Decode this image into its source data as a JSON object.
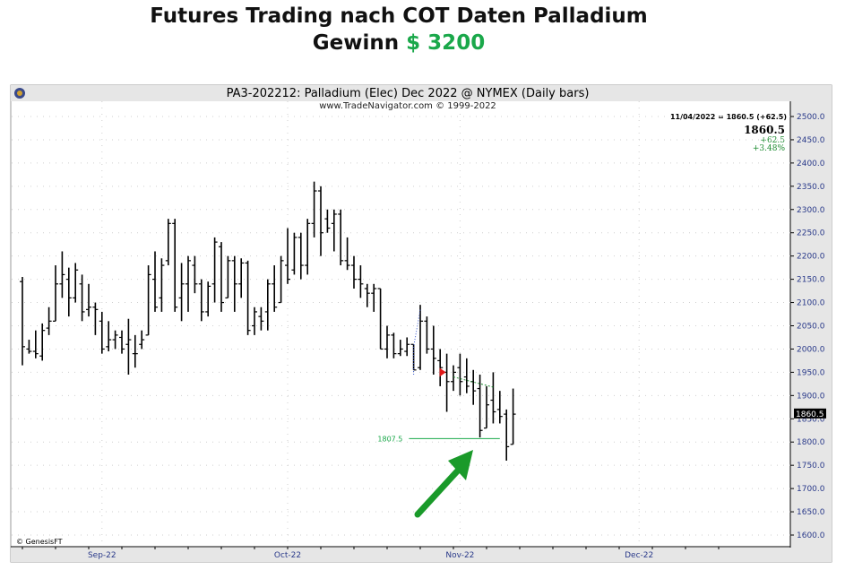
{
  "headline": {
    "line1": "Futures Trading nach COT Daten Palladium",
    "line2_prefix": "Gewinn",
    "line2_amount": "$ 3200"
  },
  "chart_data": {
    "type": "ohlc",
    "title": "PA3-202212:  Palladium (Elec) Dec 2022 @ NYMEX  (Daily bars)",
    "subtitle": "www.TradeNavigator.com © 1999-2022",
    "watermark": "© GenesisFT",
    "info_line": "11/04/2022 = 1860.5 (+62.5)",
    "last_price": "1860.5",
    "change": "+62.5",
    "change_pct": "+3.48%",
    "price_label": "1860.5",
    "level_label": "1807.5",
    "level_value": 1807.5,
    "ylim": [
      1600,
      2500
    ],
    "yticks": [
      1600,
      1650,
      1700,
      1750,
      1800,
      1850,
      1900,
      1950,
      2000,
      2050,
      2100,
      2150,
      2200,
      2250,
      2300,
      2350,
      2400,
      2450,
      2500
    ],
    "ytick_labels": [
      "1600.0",
      "1650.0",
      "1700.0",
      "1750.0",
      "1800.0",
      "1850.0",
      "1900.0",
      "1950.0",
      "2000.0",
      "2050.0",
      "2100.0",
      "2150.0",
      "2200.0",
      "2250.0",
      "2300.0",
      "2350.0",
      "2400.0",
      "2450.0",
      "2500.0"
    ],
    "xticks": [
      {
        "label": "Sep-22",
        "index": 12
      },
      {
        "label": "Oct-22",
        "index": 40
      },
      {
        "label": "Nov-22",
        "index": 66
      },
      {
        "label": "Dec-22",
        "index": 93
      }
    ],
    "x_count": 110,
    "bars": [
      {
        "i": 0,
        "o": 2145,
        "h": 2155,
        "l": 1965,
        "c": 2005
      },
      {
        "i": 1,
        "o": 2000,
        "h": 2020,
        "l": 1990,
        "c": 1995
      },
      {
        "i": 2,
        "o": 1995,
        "h": 2040,
        "l": 1980,
        "c": 1990
      },
      {
        "i": 3,
        "o": 1985,
        "h": 2055,
        "l": 1975,
        "c": 2040
      },
      {
        "i": 4,
        "o": 2045,
        "h": 2090,
        "l": 2030,
        "c": 2060
      },
      {
        "i": 5,
        "o": 2060,
        "h": 2180,
        "l": 2060,
        "c": 2140
      },
      {
        "i": 6,
        "o": 2140,
        "h": 2210,
        "l": 2110,
        "c": 2160
      },
      {
        "i": 7,
        "o": 2150,
        "h": 2175,
        "l": 2070,
        "c": 2110
      },
      {
        "i": 8,
        "o": 2110,
        "h": 2185,
        "l": 2100,
        "c": 2170
      },
      {
        "i": 9,
        "o": 2140,
        "h": 2160,
        "l": 2060,
        "c": 2080
      },
      {
        "i": 10,
        "o": 2085,
        "h": 2140,
        "l": 2070,
        "c": 2090
      },
      {
        "i": 11,
        "o": 2090,
        "h": 2100,
        "l": 2030,
        "c": 2085
      },
      {
        "i": 12,
        "o": 2060,
        "h": 2080,
        "l": 1990,
        "c": 2000
      },
      {
        "i": 13,
        "o": 2005,
        "h": 2060,
        "l": 1995,
        "c": 2020
      },
      {
        "i": 14,
        "o": 2020,
        "h": 2040,
        "l": 2000,
        "c": 2030
      },
      {
        "i": 15,
        "o": 2025,
        "h": 2040,
        "l": 1990,
        "c": 2000
      },
      {
        "i": 16,
        "o": 2010,
        "h": 2065,
        "l": 1945,
        "c": 2020
      },
      {
        "i": 17,
        "o": 1990,
        "h": 2030,
        "l": 1960,
        "c": 1990
      },
      {
        "i": 18,
        "o": 2010,
        "h": 2040,
        "l": 2000,
        "c": 2020
      },
      {
        "i": 19,
        "o": 2030,
        "h": 2180,
        "l": 2030,
        "c": 2160
      },
      {
        "i": 20,
        "o": 2150,
        "h": 2210,
        "l": 2080,
        "c": 2090
      },
      {
        "i": 21,
        "o": 2110,
        "h": 2195,
        "l": 2080,
        "c": 2180
      },
      {
        "i": 22,
        "o": 2190,
        "h": 2280,
        "l": 2180,
        "c": 2270
      },
      {
        "i": 23,
        "o": 2270,
        "h": 2280,
        "l": 2080,
        "c": 2090
      },
      {
        "i": 24,
        "o": 2110,
        "h": 2185,
        "l": 2060,
        "c": 2140
      },
      {
        "i": 25,
        "o": 2140,
        "h": 2200,
        "l": 2080,
        "c": 2190
      },
      {
        "i": 26,
        "o": 2180,
        "h": 2200,
        "l": 2120,
        "c": 2140
      },
      {
        "i": 27,
        "o": 2140,
        "h": 2150,
        "l": 2060,
        "c": 2080
      },
      {
        "i": 28,
        "o": 2080,
        "h": 2145,
        "l": 2070,
        "c": 2135
      },
      {
        "i": 29,
        "o": 2140,
        "h": 2240,
        "l": 2100,
        "c": 2230
      },
      {
        "i": 30,
        "o": 2220,
        "h": 2230,
        "l": 2080,
        "c": 2100
      },
      {
        "i": 31,
        "o": 2110,
        "h": 2200,
        "l": 2110,
        "c": 2190
      },
      {
        "i": 32,
        "o": 2190,
        "h": 2200,
        "l": 2080,
        "c": 2140
      },
      {
        "i": 33,
        "o": 2140,
        "h": 2195,
        "l": 2110,
        "c": 2185
      },
      {
        "i": 34,
        "o": 2185,
        "h": 2190,
        "l": 2030,
        "c": 2040
      },
      {
        "i": 35,
        "o": 2050,
        "h": 2090,
        "l": 2030,
        "c": 2080
      },
      {
        "i": 36,
        "o": 2070,
        "h": 2090,
        "l": 2040,
        "c": 2060
      },
      {
        "i": 37,
        "o": 2080,
        "h": 2150,
        "l": 2040,
        "c": 2140
      },
      {
        "i": 38,
        "o": 2140,
        "h": 2180,
        "l": 2080,
        "c": 2090
      },
      {
        "i": 39,
        "o": 2100,
        "h": 2200,
        "l": 2100,
        "c": 2190
      },
      {
        "i": 40,
        "o": 2180,
        "h": 2260,
        "l": 2140,
        "c": 2150
      },
      {
        "i": 41,
        "o": 2170,
        "h": 2250,
        "l": 2160,
        "c": 2240
      },
      {
        "i": 42,
        "o": 2240,
        "h": 2250,
        "l": 2150,
        "c": 2180
      },
      {
        "i": 43,
        "o": 2180,
        "h": 2280,
        "l": 2160,
        "c": 2270
      },
      {
        "i": 44,
        "o": 2270,
        "h": 2360,
        "l": 2240,
        "c": 2340
      },
      {
        "i": 45,
        "o": 2340,
        "h": 2350,
        "l": 2200,
        "c": 2250
      },
      {
        "i": 46,
        "o": 2280,
        "h": 2300,
        "l": 2250,
        "c": 2260
      },
      {
        "i": 47,
        "o": 2270,
        "h": 2300,
        "l": 2210,
        "c": 2290
      },
      {
        "i": 48,
        "o": 2290,
        "h": 2300,
        "l": 2180,
        "c": 2190
      },
      {
        "i": 49,
        "o": 2190,
        "h": 2240,
        "l": 2170,
        "c": 2180
      },
      {
        "i": 50,
        "o": 2180,
        "h": 2200,
        "l": 2130,
        "c": 2150
      },
      {
        "i": 51,
        "o": 2150,
        "h": 2180,
        "l": 2110,
        "c": 2140
      },
      {
        "i": 52,
        "o": 2130,
        "h": 2140,
        "l": 2090,
        "c": 2120
      },
      {
        "i": 53,
        "o": 2120,
        "h": 2140,
        "l": 2080,
        "c": 2130
      },
      {
        "i": 54,
        "o": 2130,
        "h": 2130,
        "l": 2000,
        "c": 2000
      },
      {
        "i": 55,
        "o": 2000,
        "h": 2050,
        "l": 1980,
        "c": 2030
      },
      {
        "i": 56,
        "o": 2030,
        "h": 2035,
        "l": 1980,
        "c": 1990
      },
      {
        "i": 57,
        "o": 1990,
        "h": 2020,
        "l": 1985,
        "c": 2000
      },
      {
        "i": 58,
        "o": 1995,
        "h": 2025,
        "l": 1985,
        "c": 2010
      },
      {
        "i": 59,
        "o": 2010,
        "h": 2010,
        "l": 1955,
        "c": 1955
      },
      {
        "i": 60,
        "o": 1960,
        "h": 2095,
        "l": 1955,
        "c": 2060
      },
      {
        "i": 61,
        "o": 2060,
        "h": 2070,
        "l": 1990,
        "c": 2000
      },
      {
        "i": 62,
        "o": 2000,
        "h": 2050,
        "l": 1945,
        "c": 1980
      },
      {
        "i": 63,
        "o": 1975,
        "h": 2000,
        "l": 1920,
        "c": 1960
      },
      {
        "i": 64,
        "o": 1950,
        "h": 1990,
        "l": 1865,
        "c": 1930
      },
      {
        "i": 65,
        "o": 1930,
        "h": 1965,
        "l": 1910,
        "c": 1950
      },
      {
        "i": 66,
        "o": 1960,
        "h": 1990,
        "l": 1900,
        "c": 1930
      },
      {
        "i": 67,
        "o": 1940,
        "h": 1980,
        "l": 1905,
        "c": 1920
      },
      {
        "i": 68,
        "o": 1930,
        "h": 1955,
        "l": 1880,
        "c": 1910
      },
      {
        "i": 69,
        "o": 1915,
        "h": 1945,
        "l": 1810,
        "c": 1825
      },
      {
        "i": 70,
        "o": 1830,
        "h": 1920,
        "l": 1830,
        "c": 1880
      },
      {
        "i": 71,
        "o": 1890,
        "h": 1950,
        "l": 1840,
        "c": 1865
      },
      {
        "i": 72,
        "o": 1870,
        "h": 1910,
        "l": 1840,
        "c": 1855
      },
      {
        "i": 73,
        "o": 1860,
        "h": 1870,
        "l": 1760,
        "c": 1790
      },
      {
        "i": 74,
        "o": 1795,
        "h": 1915,
        "l": 1795,
        "c": 1860
      }
    ]
  }
}
